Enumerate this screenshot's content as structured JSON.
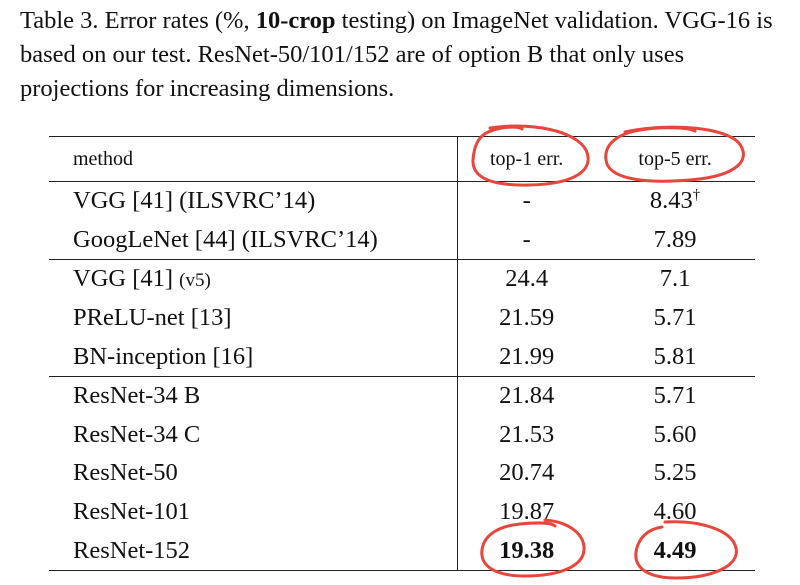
{
  "caption": {
    "prefix": "Table 3. Error rates (%, ",
    "bold": "10-crop",
    "rest": " testing) on ImageNet validation. VGG-16 is based on our test. ResNet-50/101/152 are of option B that only uses projections for increasing dimensions."
  },
  "table": {
    "headers": [
      "method",
      "top-1 err.",
      "top-5 err."
    ],
    "rows": [
      {
        "method": "VGG [41] (ILSVRC’14)",
        "top1": "-",
        "top5": "8.43",
        "top5_mark": "†"
      },
      {
        "method": "GoogLeNet [44] (ILSVRC’14)",
        "top1": "-",
        "top5": "7.89"
      },
      {
        "method": "VGG [41] ",
        "method_small": "(v5)",
        "top1": "24.4",
        "top5": "7.1"
      },
      {
        "method": "PReLU-net [13]",
        "top1": "21.59",
        "top5": "5.71"
      },
      {
        "method": "BN-inception [16]",
        "top1": "21.99",
        "top5": "5.81"
      },
      {
        "method": "ResNet-34 B",
        "top1": "21.84",
        "top5": "5.71"
      },
      {
        "method": "ResNet-34 C",
        "top1": "21.53",
        "top5": "5.60"
      },
      {
        "method": "ResNet-50",
        "top1": "20.74",
        "top5": "5.25"
      },
      {
        "method": "ResNet-101",
        "top1": "19.87",
        "top5": "4.60"
      },
      {
        "method": "ResNet-152",
        "top1": "19.38",
        "top5": "4.49"
      }
    ]
  },
  "annotations": {
    "color": "#e8453c"
  }
}
